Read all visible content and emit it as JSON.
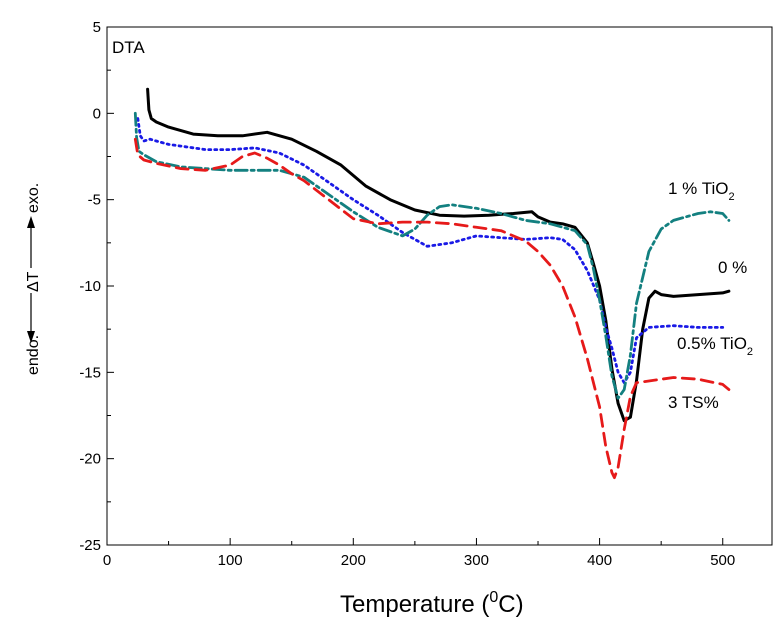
{
  "chart_data": {
    "type": "line",
    "panel_label": "DTA",
    "xlabel": {
      "base": "Temperature (",
      "sup": "0",
      "unit": "C)"
    },
    "ylabel": {
      "left": "endo.",
      "middle": "ΔT",
      "right": "exo."
    },
    "xlim": [
      0,
      540
    ],
    "ylim": [
      -25,
      5
    ],
    "xticks": [
      0,
      100,
      200,
      300,
      400,
      500
    ],
    "yticks": [
      -25,
      -20,
      -15,
      -10,
      -5,
      0,
      5
    ],
    "colors": {
      "0%": "#000000",
      "0.5% TiO2": "#1a1ae6",
      "1% TiO2": "#138080",
      "3 TS%": "#e61a1a"
    },
    "series": [
      {
        "key": "0%",
        "x": [
          33,
          34,
          36,
          40,
          50,
          60,
          70,
          90,
          110,
          130,
          150,
          170,
          190,
          210,
          230,
          250,
          270,
          290,
          310,
          330,
          345,
          350,
          360,
          370,
          380,
          390,
          395,
          400,
          405,
          410,
          415,
          420,
          425,
          430,
          435,
          440,
          445,
          450,
          460,
          480,
          500,
          505
        ],
        "values": [
          1.4,
          0.2,
          -0.3,
          -0.5,
          -0.8,
          -1.0,
          -1.2,
          -1.3,
          -1.3,
          -1.1,
          -1.5,
          -2.2,
          -3.0,
          -4.2,
          -5.0,
          -5.6,
          -5.9,
          -5.95,
          -5.9,
          -5.8,
          -5.7,
          -6.0,
          -6.3,
          -6.4,
          -6.6,
          -7.5,
          -8.7,
          -10.0,
          -12.0,
          -14.8,
          -16.8,
          -17.8,
          -17.6,
          -15.5,
          -12.5,
          -10.7,
          -10.3,
          -10.5,
          -10.6,
          -10.5,
          -10.4,
          -10.3
        ]
      },
      {
        "key": "0.5% TiO2",
        "x": [
          25,
          27,
          30,
          35,
          40,
          50,
          60,
          80,
          100,
          120,
          140,
          160,
          180,
          200,
          220,
          240,
          260,
          280,
          300,
          320,
          340,
          360,
          370,
          380,
          390,
          400,
          405,
          410,
          415,
          420,
          425,
          430,
          440,
          460,
          480,
          500
        ],
        "values": [
          -0.3,
          -1.3,
          -1.6,
          -1.5,
          -1.6,
          -1.8,
          -1.9,
          -2.1,
          -2.1,
          -2.0,
          -2.3,
          -3.0,
          -4.0,
          -5.0,
          -5.9,
          -6.9,
          -7.7,
          -7.5,
          -7.1,
          -7.2,
          -7.3,
          -7.2,
          -7.3,
          -7.9,
          -9.1,
          -10.8,
          -12.4,
          -13.6,
          -15.0,
          -15.6,
          -15.0,
          -13.0,
          -12.4,
          -12.3,
          -12.4,
          -12.4
        ]
      },
      {
        "key": "1% TiO2",
        "x": [
          23,
          24,
          26,
          30,
          40,
          60,
          80,
          100,
          120,
          140,
          160,
          180,
          200,
          220,
          240,
          250,
          260,
          270,
          280,
          300,
          320,
          340,
          360,
          380,
          390,
          395,
          400,
          405,
          410,
          415,
          420,
          425,
          430,
          440,
          450,
          460,
          470,
          480,
          490,
          500,
          505
        ],
        "values": [
          0.0,
          -1.4,
          -2.2,
          -2.4,
          -2.8,
          -3.1,
          -3.2,
          -3.3,
          -3.3,
          -3.3,
          -3.7,
          -4.7,
          -5.7,
          -6.6,
          -7.1,
          -6.7,
          -5.9,
          -5.4,
          -5.3,
          -5.5,
          -5.8,
          -6.2,
          -6.4,
          -6.8,
          -7.6,
          -9.0,
          -10.8,
          -12.9,
          -15.2,
          -16.5,
          -16.0,
          -14.0,
          -11.0,
          -8.0,
          -6.7,
          -6.2,
          -6.0,
          -5.8,
          -5.7,
          -5.8,
          -6.2
        ]
      },
      {
        "key": "3 TS%",
        "x": [
          23,
          25,
          30,
          40,
          60,
          80,
          100,
          110,
          120,
          130,
          140,
          150,
          160,
          180,
          200,
          220,
          240,
          260,
          280,
          300,
          320,
          340,
          350,
          360,
          370,
          380,
          390,
          400,
          405,
          410,
          412,
          415,
          420,
          425,
          430,
          440,
          460,
          480,
          500,
          505
        ],
        "values": [
          -1.5,
          -2.4,
          -2.7,
          -2.9,
          -3.2,
          -3.3,
          -3.0,
          -2.5,
          -2.3,
          -2.6,
          -3.0,
          -3.5,
          -3.9,
          -5.0,
          -6.1,
          -6.4,
          -6.3,
          -6.3,
          -6.4,
          -6.6,
          -6.8,
          -7.4,
          -8.0,
          -8.8,
          -10.0,
          -11.8,
          -14.2,
          -17.0,
          -19.3,
          -20.8,
          -21.1,
          -20.5,
          -18.3,
          -16.4,
          -15.6,
          -15.5,
          -15.3,
          -15.4,
          -15.7,
          -16.0
        ]
      }
    ],
    "annotations": [
      {
        "key": "1% TiO2",
        "base": "1 % TiO",
        "sub": "2"
      },
      {
        "key": "0%",
        "base": "0 %",
        "sub": ""
      },
      {
        "key": "0.5% TiO2",
        "base": "0.5% TiO",
        "sub": "2"
      },
      {
        "key": "3 TS%",
        "base": "3 TS%",
        "sub": ""
      }
    ]
  }
}
